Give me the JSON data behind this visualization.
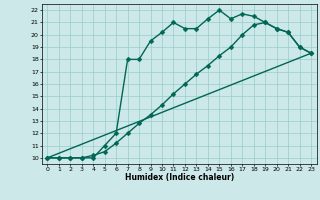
{
  "title": "",
  "xlabel": "Humidex (Indice chaleur)",
  "bg_color": "#cce8e8",
  "grid_color": "#99cccc",
  "line_color": "#006655",
  "xlim": [
    -0.5,
    23.5
  ],
  "ylim": [
    9.5,
    22.5
  ],
  "xticks": [
    0,
    1,
    2,
    3,
    4,
    5,
    6,
    7,
    8,
    9,
    10,
    11,
    12,
    13,
    14,
    15,
    16,
    17,
    18,
    19,
    20,
    21,
    22,
    23
  ],
  "yticks": [
    10,
    11,
    12,
    13,
    14,
    15,
    16,
    17,
    18,
    19,
    20,
    21,
    22
  ],
  "line1_x": [
    0,
    1,
    2,
    3,
    4,
    5,
    6,
    7,
    8,
    9,
    10,
    11,
    12,
    13,
    14,
    15,
    16,
    17,
    18,
    19,
    20,
    21,
    22,
    23
  ],
  "line1_y": [
    10,
    10,
    10,
    10,
    10,
    11,
    12,
    18,
    18,
    19.5,
    20.2,
    21.0,
    20.5,
    20.5,
    21.3,
    22.0,
    21.3,
    21.7,
    21.5,
    21.0,
    20.5,
    20.2,
    19.0,
    18.5
  ],
  "line2_x": [
    0,
    1,
    2,
    3,
    4,
    5,
    6,
    7,
    8,
    9,
    10,
    11,
    12,
    13,
    14,
    15,
    16,
    17,
    18,
    19,
    20,
    21,
    22,
    23
  ],
  "line2_y": [
    10,
    10,
    10,
    10,
    10.2,
    10.5,
    11.2,
    12.0,
    12.8,
    13.5,
    14.3,
    15.2,
    16.0,
    16.8,
    17.5,
    18.3,
    19.0,
    20.0,
    20.8,
    21.0,
    20.5,
    20.2,
    19.0,
    18.5
  ],
  "line3_x": [
    0,
    23
  ],
  "line3_y": [
    10,
    18.5
  ],
  "marker": "D",
  "markersize": 2.5,
  "linewidth": 1.0
}
